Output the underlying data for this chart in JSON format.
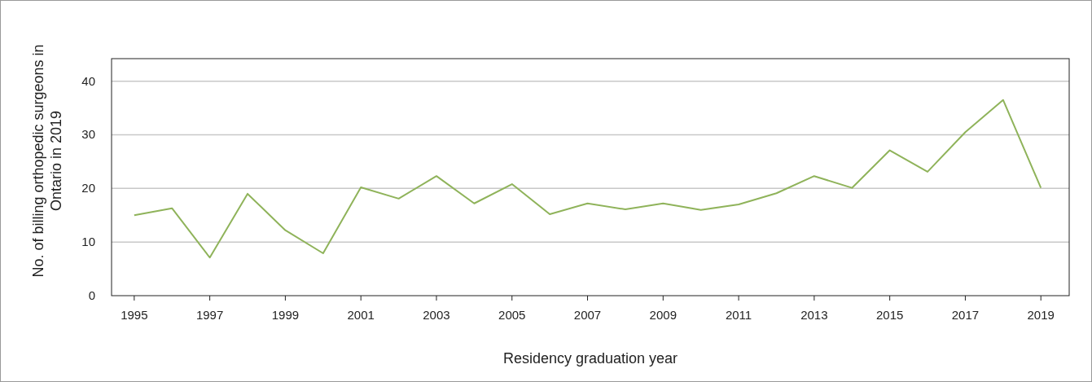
{
  "chart_data": {
    "type": "line",
    "xlabel": "Residency graduation year",
    "ylabel": "No. of billing orthopedic surgeons in Ontario in 2019",
    "x": [
      1995,
      1996,
      1997,
      1998,
      1999,
      2000,
      2001,
      2002,
      2003,
      2004,
      2005,
      2006,
      2007,
      2008,
      2009,
      2010,
      2011,
      2012,
      2013,
      2014,
      2015,
      2016,
      2017,
      2018,
      2019
    ],
    "series": [
      {
        "color": "#8fb35a",
        "values": [
          15,
          16.3,
          7.1,
          19,
          12.2,
          7.9,
          20.2,
          18.1,
          22.3,
          17.2,
          20.8,
          15.2,
          17.2,
          16.1,
          17.2,
          16,
          17,
          19.1,
          22.3,
          20.1,
          27.1,
          23.1,
          30.5,
          36.5,
          20.1
        ]
      }
    ],
    "xlim": [
      1994.4,
      2019.75
    ],
    "xticks": [
      1995,
      1997,
      1999,
      2001,
      2003,
      2005,
      2007,
      2009,
      2011,
      2013,
      2015,
      2017,
      2019
    ],
    "ylim": [
      0,
      44.2
    ],
    "yticks": [
      0,
      10,
      20,
      30,
      40
    ],
    "grid": "y",
    "marker": "none",
    "line_style": "solid"
  }
}
